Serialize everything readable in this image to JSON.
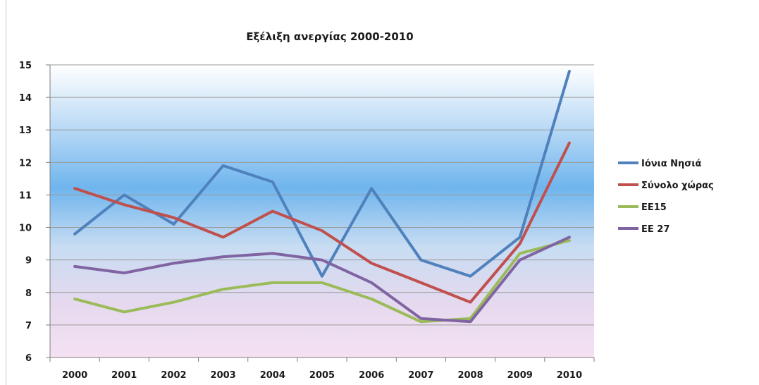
{
  "chart_data": {
    "type": "line",
    "title": "Εξέλιξη ανεργίας 2000-2010",
    "xlabel": "",
    "ylabel": "",
    "x": [
      "2000",
      "2001",
      "2002",
      "2003",
      "2004",
      "2005",
      "2006",
      "2007",
      "2008",
      "2009",
      "2010"
    ],
    "ylim": [
      6,
      15
    ],
    "yticks": [
      6,
      7,
      8,
      9,
      10,
      11,
      12,
      13,
      14,
      15
    ],
    "grid": true,
    "legend_position": "right",
    "background": "vertical gradient: white at top, sky blue in middle, light pink at bottom",
    "series": [
      {
        "name": "Ιόνια Νησιά",
        "color": "#4f81bd",
        "values": [
          9.8,
          11.0,
          10.1,
          11.9,
          11.4,
          8.5,
          11.2,
          9.0,
          8.5,
          9.7,
          14.8
        ]
      },
      {
        "name": "Σύνολο χώρας",
        "color": "#c0504d",
        "values": [
          11.2,
          10.7,
          10.3,
          9.7,
          10.5,
          9.9,
          8.9,
          8.3,
          7.7,
          9.5,
          12.6
        ]
      },
      {
        "name": "ΕΕ15",
        "color": "#9bbb59",
        "values": [
          7.8,
          7.4,
          7.7,
          8.1,
          8.3,
          8.3,
          7.8,
          7.1,
          7.2,
          9.2,
          9.6
        ]
      },
      {
        "name": "ΕΕ 27",
        "color": "#8064a2",
        "values": [
          8.8,
          8.6,
          8.9,
          9.1,
          9.2,
          9.0,
          8.3,
          7.2,
          7.1,
          9.0,
          9.7
        ]
      }
    ]
  }
}
